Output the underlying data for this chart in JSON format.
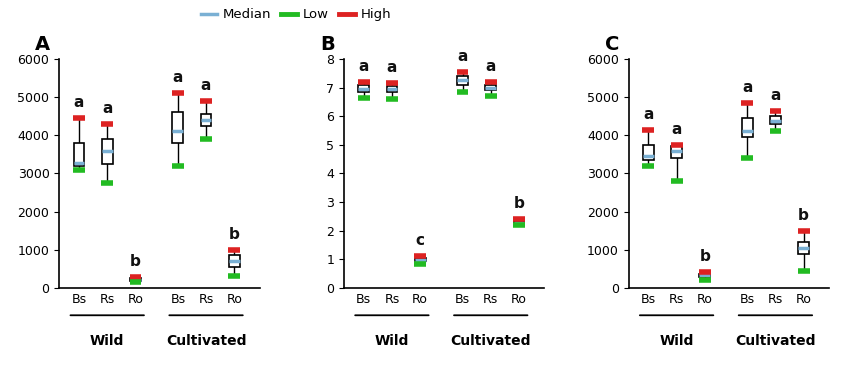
{
  "panels": [
    "A",
    "B",
    "C"
  ],
  "categories": [
    "Bs",
    "Rs",
    "Ro",
    "Bs",
    "Rs",
    "Ro"
  ],
  "group_labels": [
    "Wild",
    "Cultivated"
  ],
  "sig_letters": {
    "A": [
      "a",
      "a",
      "b",
      "a",
      "a",
      "b"
    ],
    "B": [
      "a",
      "a",
      "c",
      "a",
      "a",
      "b"
    ],
    "C": [
      "a",
      "a",
      "b",
      "a",
      "a",
      "b"
    ]
  },
  "ylims": {
    "A": [
      0,
      6000
    ],
    "B": [
      0,
      8
    ],
    "C": [
      0,
      6000
    ]
  },
  "yticks": {
    "A": [
      0,
      1000,
      2000,
      3000,
      4000,
      5000,
      6000
    ],
    "B": [
      0,
      1,
      2,
      3,
      4,
      5,
      6,
      7,
      8
    ],
    "C": [
      0,
      1000,
      2000,
      3000,
      4000,
      5000,
      6000
    ]
  },
  "boxes": {
    "A": [
      {
        "low": 3100,
        "q1": 3200,
        "med": 3280,
        "q3": 3800,
        "high": 4450
      },
      {
        "low": 2750,
        "q1": 3250,
        "med": 3600,
        "q3": 3900,
        "high": 4300
      },
      {
        "low": 150,
        "q1": 175,
        "med": 210,
        "q3": 250,
        "high": 290
      },
      {
        "low": 3200,
        "q1": 3800,
        "med": 4100,
        "q3": 4600,
        "high": 5100
      },
      {
        "low": 3900,
        "q1": 4250,
        "med": 4400,
        "q3": 4550,
        "high": 4900
      },
      {
        "low": 300,
        "q1": 550,
        "med": 700,
        "q3": 850,
        "high": 1000
      }
    ],
    "B": [
      {
        "low": 6.65,
        "q1": 6.85,
        "med": 6.95,
        "q3": 7.1,
        "high": 7.2
      },
      {
        "low": 6.6,
        "q1": 6.85,
        "med": 6.95,
        "q3": 7.05,
        "high": 7.15
      },
      {
        "low": 0.85,
        "q1": 0.93,
        "med": 0.98,
        "q3": 1.05,
        "high": 1.1
      },
      {
        "low": 6.85,
        "q1": 7.1,
        "med": 7.25,
        "q3": 7.4,
        "high": 7.55
      },
      {
        "low": 6.7,
        "q1": 6.9,
        "med": 6.98,
        "q3": 7.1,
        "high": 7.2
      },
      {
        "low": 2.2,
        "q1": 2.25,
        "med": 2.28,
        "q3": 2.33,
        "high": 2.4
      }
    ],
    "C": [
      {
        "low": 3200,
        "q1": 3350,
        "med": 3450,
        "q3": 3750,
        "high": 4150
      },
      {
        "low": 2800,
        "q1": 3400,
        "med": 3580,
        "q3": 3720,
        "high": 3750
      },
      {
        "low": 200,
        "q1": 280,
        "med": 330,
        "q3": 370,
        "high": 420
      },
      {
        "low": 3400,
        "q1": 3950,
        "med": 4100,
        "q3": 4450,
        "high": 4850
      },
      {
        "low": 4100,
        "q1": 4300,
        "med": 4380,
        "q3": 4500,
        "high": 4650
      },
      {
        "low": 450,
        "q1": 900,
        "med": 1050,
        "q3": 1200,
        "high": 1500
      }
    ]
  },
  "box_color": "#ffffff",
  "box_edge_color": "#000000",
  "median_color": "#7ab0d4",
  "low_color": "#22bb22",
  "high_color": "#dd2222",
  "whisker_color": "#000000",
  "letter_fontsize": 11,
  "tick_fontsize": 9,
  "label_fontsize": 10,
  "panel_label_fontsize": 14,
  "box_width": 0.38
}
